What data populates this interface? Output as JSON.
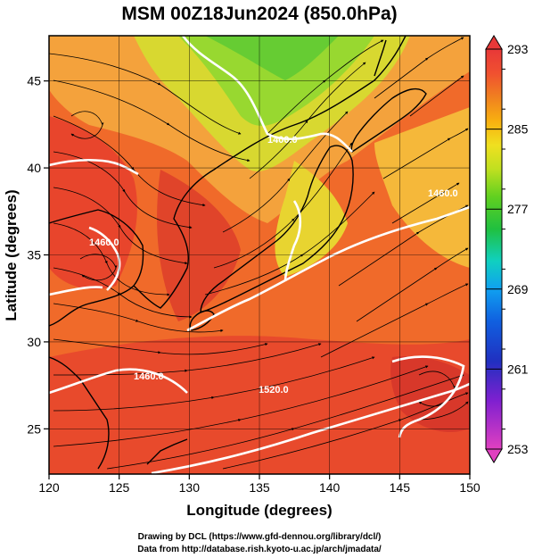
{
  "title": "MSM 00Z18Jun2024 (850.0hPa)",
  "x_axis": {
    "label": "Longitude (degrees)",
    "min": 120,
    "max": 150,
    "ticks": [
      "120",
      "125",
      "130",
      "135",
      "140",
      "145",
      "150"
    ]
  },
  "y_axis": {
    "label": "Latitude  (degrees)",
    "min": 22.4,
    "max": 47.6,
    "ticks": [
      "25",
      "30",
      "35",
      "40",
      "45"
    ]
  },
  "colorbar": {
    "min": 253,
    "max": 293,
    "ticks": [
      "293",
      "285",
      "277",
      "269",
      "261",
      "253"
    ],
    "colors": [
      "#e040c0",
      "#8020d0",
      "#2030c0",
      "#1060e0",
      "#10a0f0",
      "#10d0c0",
      "#20c040",
      "#60d020",
      "#c0e020",
      "#f0e020",
      "#f8b010",
      "#f08020",
      "#f05030",
      "#e83838"
    ]
  },
  "contour_labels": [
    "1400.0",
    "1460.0",
    "1460.0",
    "1520.0",
    "1460.0"
  ],
  "credits": [
    "Drawing by DCL (https://www.gfd-dennou.org/library/dcl/)",
    "Data from http://database.rish.kyoto-u.ac.jp/arch/jmadata/"
  ]
}
